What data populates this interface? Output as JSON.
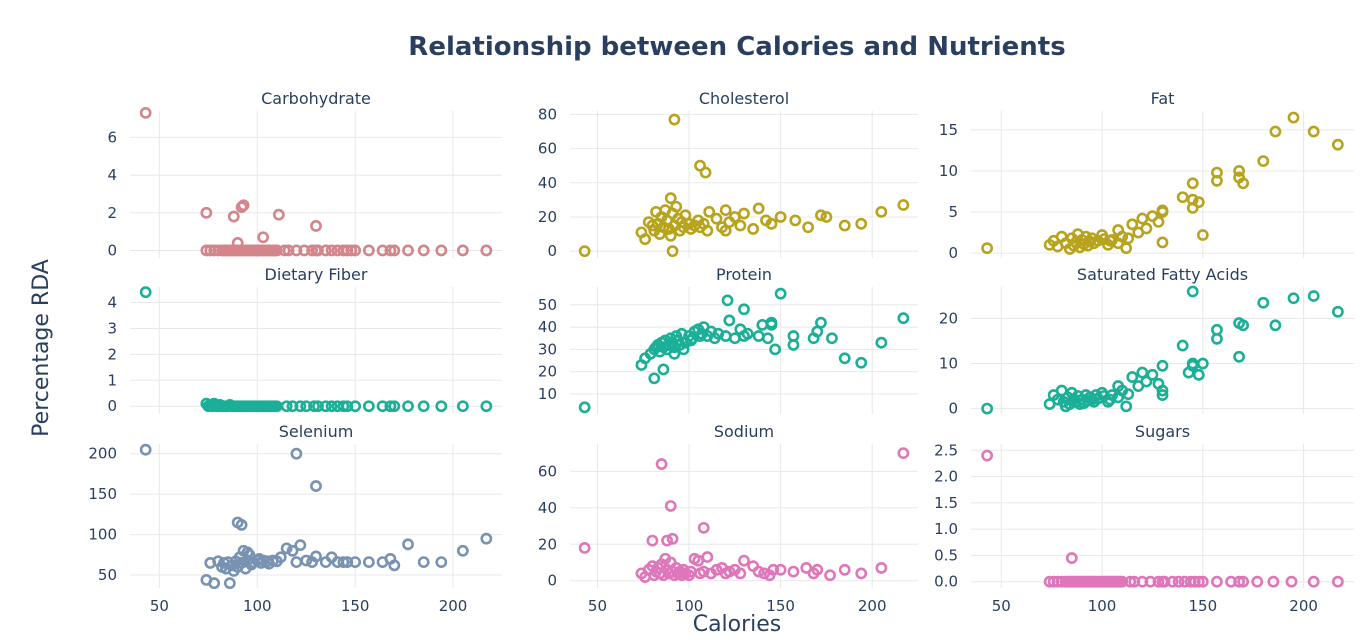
{
  "figure": {
    "title": "Relationship between Calories and Nutrients",
    "xlabel": "Calories",
    "ylabel": "Percentage RDA"
  },
  "chart_data": [
    {
      "type": "scatter",
      "title": "Carbohydrate",
      "color": "#d4848a",
      "xlim": [
        35,
        225
      ],
      "xticks": [
        50,
        100,
        150,
        200
      ],
      "ylim": [
        -0.4,
        7.4
      ],
      "yticks": [
        0,
        2,
        4,
        6
      ],
      "ytick_labels": [
        "0",
        "2",
        "4",
        "6"
      ],
      "x": [
        43,
        74,
        76,
        78,
        80,
        82,
        83,
        84,
        85,
        86,
        87,
        88,
        89,
        90,
        91,
        92,
        93,
        94,
        95,
        96,
        97,
        98,
        99,
        100,
        101,
        102,
        103,
        104,
        105,
        106,
        107,
        108,
        109,
        110,
        114,
        116,
        120,
        124,
        128,
        130,
        131,
        135,
        138,
        141,
        144,
        146,
        148,
        150,
        157,
        164,
        168,
        170,
        177,
        185,
        194,
        205,
        217,
        74,
        88,
        90,
        92,
        93,
        103,
        111,
        130
      ],
      "y": [
        7.3,
        0,
        0,
        0,
        0,
        0,
        0,
        0,
        0,
        0,
        0,
        0,
        0,
        0,
        0,
        0,
        0,
        0,
        0,
        0,
        0,
        0,
        0,
        0,
        0,
        0,
        0,
        0,
        0,
        0,
        0,
        0,
        0,
        0,
        0,
        0,
        0,
        0,
        0,
        0,
        0,
        0,
        0,
        0,
        0,
        0,
        0,
        0,
        0,
        0,
        0,
        0,
        0,
        0,
        0,
        0,
        0,
        2.0,
        1.8,
        0.4,
        2.3,
        2.4,
        0.7,
        1.9,
        1.3
      ]
    },
    {
      "type": "scatter",
      "title": "Cholesterol",
      "color": "#b8a31d",
      "xlim": [
        35,
        225
      ],
      "xticks": [
        50,
        100,
        150,
        200
      ],
      "ylim": [
        -4,
        82
      ],
      "yticks": [
        0,
        20,
        40,
        60,
        80
      ],
      "ytick_labels": [
        "0",
        "20",
        "40",
        "60",
        "80"
      ],
      "x": [
        43,
        74,
        76,
        78,
        80,
        81,
        82,
        83,
        84,
        85,
        86,
        87,
        88,
        89,
        90,
        90,
        91,
        92,
        93,
        94,
        95,
        96,
        97,
        98,
        100,
        101,
        103,
        105,
        106,
        108,
        110,
        111,
        115,
        118,
        120,
        122,
        125,
        128,
        130,
        135,
        138,
        142,
        145,
        150,
        158,
        165,
        172,
        175,
        185,
        194,
        205,
        217,
        92,
        91,
        106,
        109,
        120
      ],
      "y": [
        0,
        11,
        7,
        17,
        15,
        12,
        23,
        16,
        10,
        20,
        14,
        24,
        18,
        13,
        31,
        9,
        22,
        15,
        26,
        19,
        12,
        17,
        14,
        21,
        16,
        13,
        15,
        18,
        14,
        16,
        12,
        23,
        19,
        14,
        24,
        17,
        20,
        15,
        22,
        13,
        25,
        18,
        16,
        20,
        18,
        14,
        21,
        20,
        15,
        16,
        23,
        27,
        77,
        0,
        50,
        46,
        12
      ]
    },
    {
      "type": "scatter",
      "title": "Fat",
      "color": "#b8a31d",
      "xlim": [
        35,
        225
      ],
      "xticks": [
        50,
        100,
        150,
        200
      ],
      "ylim": [
        -0.6,
        17.3
      ],
      "yticks": [
        0,
        5,
        10,
        15
      ],
      "ytick_labels": [
        "0",
        "5",
        "10",
        "15"
      ],
      "x": [
        43,
        74,
        76,
        78,
        80,
        82,
        84,
        85,
        86,
        87,
        88,
        89,
        90,
        91,
        92,
        93,
        94,
        95,
        96,
        98,
        100,
        101,
        103,
        105,
        108,
        110,
        113,
        115,
        118,
        120,
        122,
        125,
        128,
        130,
        130,
        140,
        145,
        145,
        148,
        145,
        150,
        157,
        157,
        168,
        170,
        168,
        180,
        186,
        195,
        205,
        217,
        104,
        112,
        130,
        108
      ],
      "y": [
        0.6,
        1.0,
        1.5,
        0.8,
        2.0,
        1.2,
        0.5,
        1.8,
        0.9,
        1.3,
        2.3,
        0.7,
        1.6,
        1.1,
        2.0,
        0.9,
        1.4,
        1.8,
        1.2,
        1.5,
        2.2,
        1.7,
        1.0,
        1.6,
        1.2,
        2.0,
        1.8,
        3.5,
        2.5,
        4.2,
        3.0,
        4.5,
        3.8,
        5.2,
        5.0,
        6.8,
        6.5,
        5.5,
        6.2,
        8.5,
        2.2,
        8.8,
        9.8,
        10.0,
        8.5,
        9.2,
        11.2,
        14.8,
        16.5,
        14.8,
        13.2,
        1.5,
        0.6,
        1.3,
        2.8
      ]
    },
    {
      "type": "scatter",
      "title": "Dietary Fiber",
      "color": "#1aaf96",
      "xlim": [
        35,
        225
      ],
      "xticks": [
        50,
        100,
        150,
        200
      ],
      "ylim": [
        -0.3,
        4.6
      ],
      "yticks": [
        0,
        1,
        2,
        3,
        4
      ],
      "ytick_labels": [
        "0",
        "1",
        "2",
        "3",
        "4"
      ],
      "x": [
        43,
        74,
        75,
        76,
        77,
        78,
        79,
        80,
        81,
        82,
        83,
        84,
        85,
        86,
        87,
        88,
        89,
        90,
        91,
        92,
        93,
        94,
        95,
        96,
        97,
        98,
        99,
        100,
        101,
        102,
        103,
        104,
        105,
        106,
        107,
        108,
        109,
        110,
        115,
        118,
        122,
        125,
        129,
        131,
        135,
        138,
        141,
        144,
        146,
        150,
        157,
        164,
        168,
        170,
        177,
        185,
        194,
        205,
        217
      ],
      "y": [
        4.4,
        0.1,
        0,
        0.05,
        0,
        0.1,
        0,
        0,
        0.05,
        0,
        0,
        0,
        0,
        0.05,
        0,
        0,
        0,
        0,
        0,
        0,
        0,
        0,
        0,
        0,
        0,
        0,
        0,
        0,
        0,
        0,
        0,
        0,
        0,
        0,
        0,
        0,
        0,
        0,
        0,
        0,
        0,
        0,
        0,
        0,
        0,
        0,
        0,
        0,
        0,
        0,
        0,
        0,
        0,
        0,
        0,
        0,
        0,
        0,
        0
      ]
    },
    {
      "type": "scatter",
      "title": "Protein",
      "color": "#1aaf96",
      "xlim": [
        35,
        225
      ],
      "xticks": [
        50,
        100,
        150,
        200
      ],
      "ylim": [
        1,
        58
      ],
      "yticks": [
        10,
        20,
        30,
        40,
        50
      ],
      "ytick_labels": [
        "10",
        "20",
        "30",
        "40",
        "50"
      ],
      "x": [
        43,
        74,
        76,
        79,
        81,
        82,
        83,
        84,
        85,
        86,
        87,
        88,
        89,
        90,
        91,
        92,
        93,
        94,
        95,
        96,
        97,
        98,
        100,
        101,
        102,
        103,
        105,
        106,
        107,
        108,
        110,
        112,
        114,
        116,
        120,
        122,
        125,
        128,
        130,
        132,
        138,
        140,
        143,
        145,
        147,
        150,
        157,
        157,
        168,
        170,
        172,
        178,
        185,
        194,
        205,
        217,
        81,
        86,
        92,
        121,
        130,
        145
      ],
      "y": [
        4,
        23,
        26,
        28,
        30,
        31,
        32,
        29,
        33,
        31,
        34,
        30,
        32,
        35,
        33,
        31,
        36,
        34,
        32,
        37,
        30,
        33,
        36,
        34,
        35,
        38,
        39,
        36,
        37,
        40,
        36,
        38,
        35,
        37,
        36,
        43,
        35,
        39,
        36,
        37,
        36,
        41,
        35,
        42,
        30,
        55,
        32,
        36,
        35,
        38,
        42,
        35,
        26,
        24,
        33,
        44,
        17,
        21,
        28,
        52,
        48,
        41
      ]
    },
    {
      "type": "scatter",
      "title": "Saturated Fatty Acids",
      "color": "#1aaf96",
      "xlim": [
        35,
        225
      ],
      "xticks": [
        50,
        100,
        150,
        200
      ],
      "ylim": [
        -1.2,
        27
      ],
      "yticks": [
        0,
        10,
        20
      ],
      "ytick_labels": [
        "0",
        "10",
        "20"
      ],
      "x": [
        43,
        74,
        76,
        78,
        80,
        81,
        82,
        83,
        84,
        85,
        86,
        87,
        88,
        89,
        90,
        91,
        92,
        93,
        94,
        95,
        96,
        97,
        98,
        100,
        101,
        103,
        105,
        108,
        110,
        113,
        115,
        118,
        120,
        122,
        125,
        128,
        130,
        130,
        140,
        143,
        145,
        145,
        148,
        145,
        150,
        157,
        157,
        168,
        170,
        168,
        180,
        186,
        195,
        205,
        217,
        104,
        112,
        130,
        108
      ],
      "y": [
        0,
        1,
        3,
        2,
        4,
        1.5,
        0.5,
        2.5,
        1,
        3.5,
        2,
        1.5,
        2.8,
        1,
        2,
        1.2,
        3,
        1.8,
        2.5,
        2,
        1.5,
        3,
        2.2,
        3.5,
        2.8,
        1.5,
        3,
        2.5,
        4,
        3.2,
        7,
        5,
        8,
        6,
        7.5,
        5.5,
        9.5,
        4,
        14,
        8,
        9.5,
        10,
        7.5,
        26,
        10,
        15.5,
        17.5,
        19,
        18.5,
        11.5,
        23.5,
        18.5,
        24.5,
        25,
        21.5,
        2,
        0.5,
        3,
        5
      ]
    },
    {
      "type": "scatter",
      "title": "Selenium",
      "color": "#7892b2",
      "xlim": [
        35,
        225
      ],
      "xticks": [
        50,
        100,
        150,
        200
      ],
      "ylim": [
        34,
        212
      ],
      "yticks": [
        50,
        100,
        150,
        200
      ],
      "ytick_labels": [
        "50",
        "100",
        "150",
        "200"
      ],
      "x": [
        43,
        74,
        76,
        78,
        80,
        82,
        83,
        84,
        85,
        86,
        87,
        88,
        89,
        90,
        91,
        92,
        93,
        94,
        95,
        96,
        97,
        98,
        100,
        101,
        102,
        103,
        105,
        106,
        108,
        110,
        112,
        115,
        118,
        120,
        122,
        125,
        128,
        130,
        135,
        138,
        141,
        144,
        146,
        150,
        157,
        164,
        168,
        170,
        177,
        185,
        194,
        205,
        217,
        90,
        92,
        95,
        120,
        130
      ],
      "y": [
        205,
        44,
        65,
        40,
        67,
        60,
        65,
        58,
        66,
        40,
        62,
        55,
        67,
        60,
        72,
        65,
        80,
        58,
        68,
        75,
        63,
        66,
        68,
        70,
        65,
        68,
        67,
        64,
        68,
        67,
        72,
        83,
        80,
        66,
        87,
        68,
        66,
        73,
        66,
        72,
        66,
        66,
        66,
        66,
        66,
        66,
        70,
        62,
        88,
        66,
        66,
        80,
        95,
        115,
        112,
        78,
        200,
        160
      ]
    },
    {
      "type": "scatter",
      "title": "Sodium",
      "color": "#de77ba",
      "xlim": [
        35,
        225
      ],
      "xticks": [
        50,
        100,
        150,
        200
      ],
      "ylim": [
        -4,
        75
      ],
      "yticks": [
        0,
        20,
        40,
        60
      ],
      "ytick_labels": [
        "0",
        "20",
        "40",
        "60"
      ],
      "x": [
        43,
        74,
        76,
        78,
        80,
        81,
        82,
        83,
        84,
        85,
        86,
        87,
        88,
        89,
        90,
        91,
        92,
        93,
        94,
        95,
        96,
        97,
        98,
        100,
        101,
        103,
        105,
        106,
        108,
        110,
        112,
        115,
        118,
        120,
        122,
        125,
        128,
        130,
        135,
        138,
        141,
        144,
        146,
        150,
        157,
        164,
        168,
        170,
        177,
        185,
        194,
        205,
        217,
        85,
        90,
        108,
        80,
        88,
        91
      ],
      "y": [
        18,
        4,
        2,
        6,
        8,
        3,
        5,
        7,
        4,
        9,
        3,
        12,
        6,
        4,
        10,
        5,
        3,
        7,
        4,
        5,
        3,
        6,
        4,
        3,
        5,
        12,
        11,
        4,
        5,
        13,
        4,
        6,
        7,
        4,
        5,
        6,
        4,
        11,
        8,
        5,
        4,
        3,
        6,
        6,
        5,
        7,
        4,
        6,
        3,
        6,
        4,
        7,
        70,
        64,
        41,
        29,
        22,
        22,
        23
      ]
    },
    {
      "type": "scatter",
      "title": "Sugars",
      "color": "#de77ba",
      "xlim": [
        35,
        225
      ],
      "xticks": [
        50,
        100,
        150,
        200
      ],
      "ylim": [
        -0.12,
        2.62
      ],
      "yticks": [
        0,
        0.5,
        1,
        1.5,
        2,
        2.5
      ],
      "ytick_labels": [
        "0.0",
        "0.5",
        "1.0",
        "1.5",
        "2.0",
        "2.5"
      ],
      "x": [
        43,
        74,
        76,
        78,
        80,
        82,
        83,
        84,
        85,
        86,
        87,
        88,
        89,
        90,
        91,
        92,
        93,
        94,
        95,
        96,
        97,
        98,
        99,
        100,
        101,
        102,
        103,
        104,
        105,
        106,
        107,
        108,
        109,
        110,
        114,
        116,
        120,
        124,
        128,
        130,
        131,
        135,
        138,
        141,
        144,
        146,
        148,
        150,
        157,
        164,
        168,
        170,
        177,
        185,
        194,
        205,
        217,
        85
      ],
      "y": [
        2.4,
        0,
        0,
        0,
        0,
        0,
        0,
        0,
        0,
        0,
        0,
        0,
        0,
        0,
        0,
        0,
        0,
        0,
        0,
        0,
        0,
        0,
        0,
        0,
        0,
        0,
        0,
        0,
        0,
        0,
        0,
        0,
        0,
        0,
        0,
        0,
        0,
        0,
        0,
        0,
        0,
        0,
        0,
        0,
        0,
        0,
        0,
        0,
        0,
        0,
        0,
        0,
        0,
        0,
        0,
        0,
        0,
        0.45
      ]
    }
  ]
}
